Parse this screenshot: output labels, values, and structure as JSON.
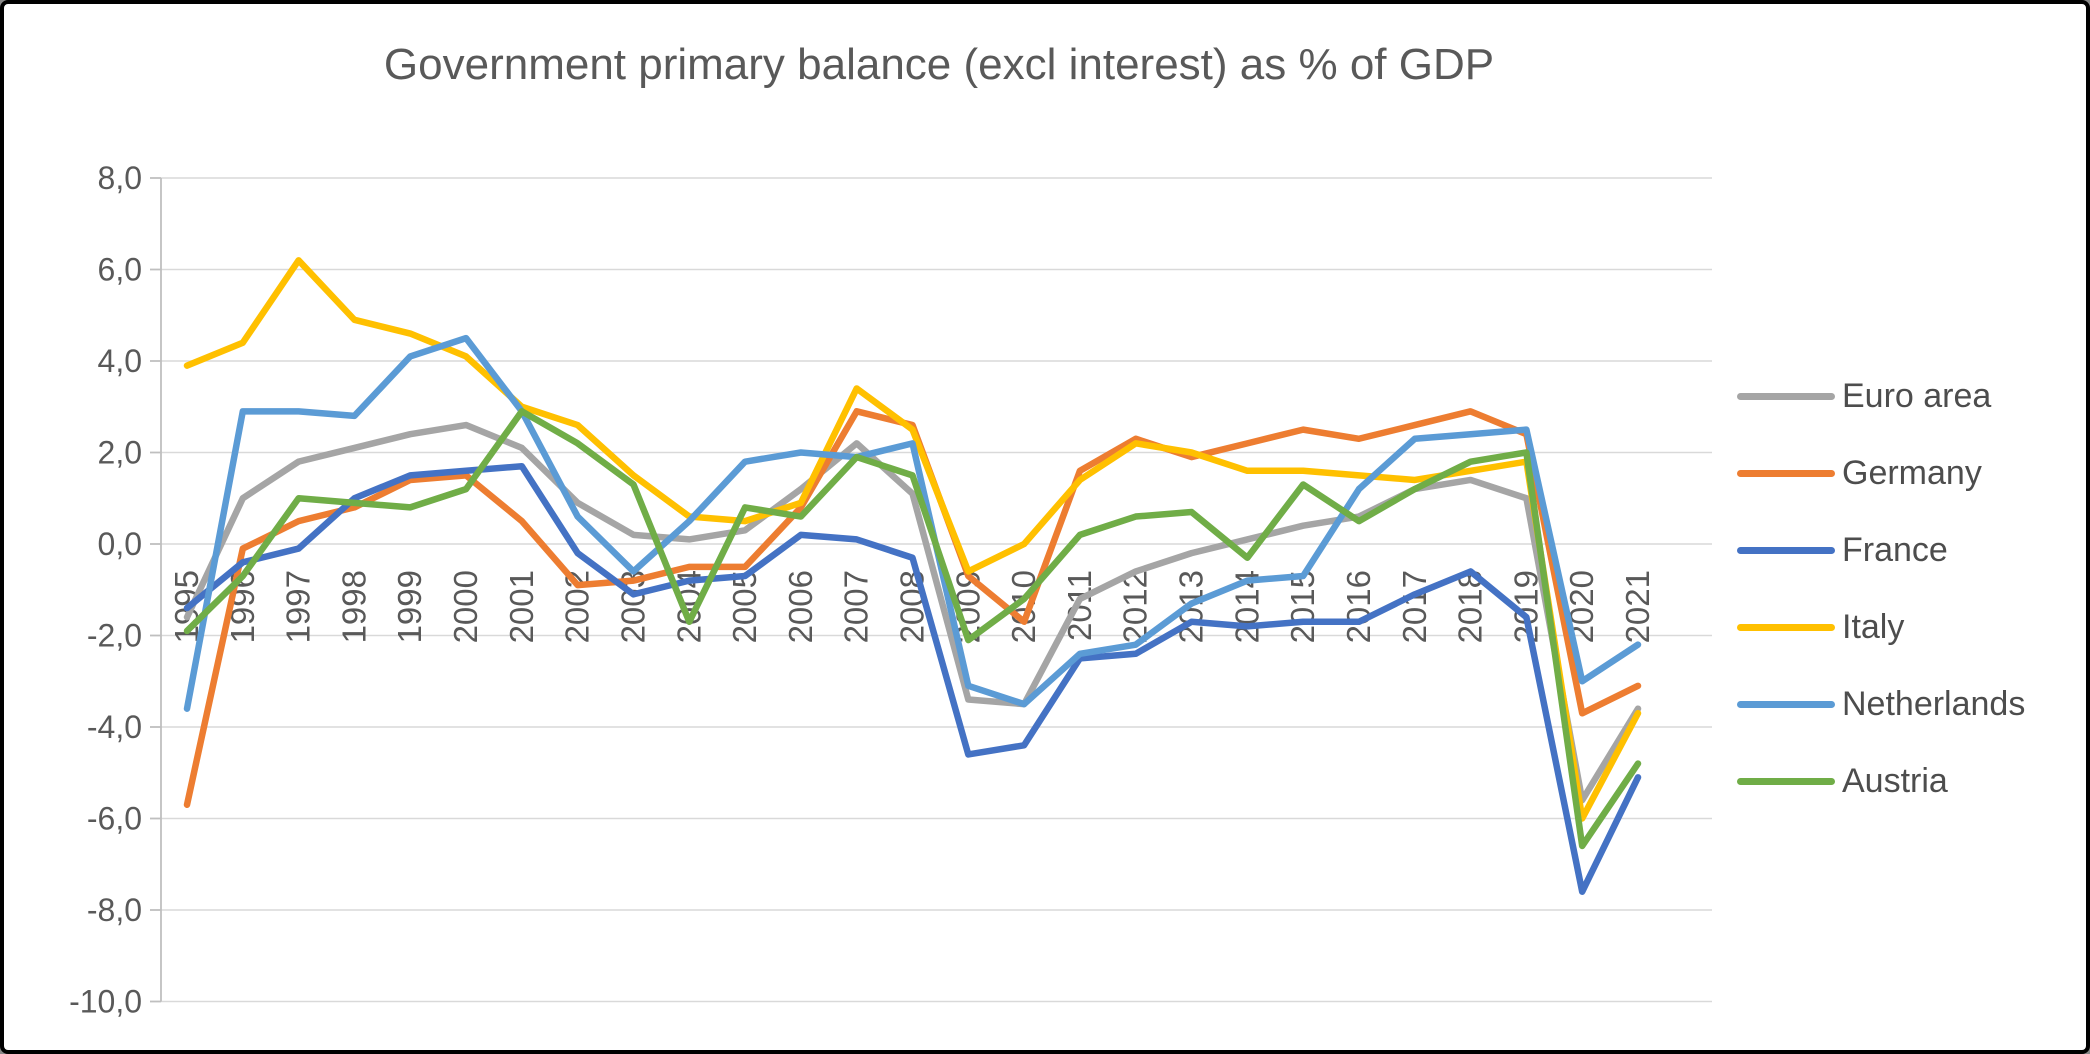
{
  "chart_data": {
    "type": "line",
    "title": "Government primary balance (excl interest) as % of GDP",
    "x": [
      "1995",
      "1996",
      "1997",
      "1998",
      "1999",
      "2000",
      "2001",
      "2002",
      "2003",
      "2004",
      "2005",
      "2006",
      "2007",
      "2008",
      "2009",
      "2010",
      "2011",
      "2012",
      "2013",
      "2014",
      "2015",
      "2016",
      "2017",
      "2018",
      "2019",
      "2020",
      "2021"
    ],
    "series": [
      {
        "name": "Euro area",
        "color": "#a5a5a5",
        "values": [
          -1.6,
          1.0,
          1.8,
          2.1,
          2.4,
          2.6,
          2.1,
          0.9,
          0.2,
          0.1,
          0.3,
          1.2,
          2.2,
          1.1,
          -3.4,
          -3.5,
          -1.2,
          -0.6,
          -0.2,
          0.1,
          0.4,
          0.6,
          1.2,
          1.4,
          1.0,
          -5.6,
          -3.6
        ]
      },
      {
        "name": "Germany",
        "color": "#ed7d31",
        "values": [
          -5.7,
          -0.1,
          0.5,
          0.8,
          1.4,
          1.5,
          0.5,
          -0.9,
          -0.8,
          -0.5,
          -0.5,
          0.8,
          2.9,
          2.6,
          -0.7,
          -1.7,
          1.6,
          2.3,
          1.9,
          2.2,
          2.5,
          2.3,
          2.6,
          2.9,
          2.4,
          -3.7,
          -3.1
        ]
      },
      {
        "name": "France",
        "color": "#4472c4",
        "values": [
          -1.4,
          -0.4,
          -0.1,
          1.0,
          1.5,
          1.6,
          1.7,
          -0.2,
          -1.1,
          -0.8,
          -0.7,
          0.2,
          0.1,
          -0.3,
          -4.6,
          -4.4,
          -2.5,
          -2.4,
          -1.7,
          -1.8,
          -1.7,
          -1.7,
          -1.1,
          -0.6,
          -1.6,
          -7.6,
          -5.1
        ]
      },
      {
        "name": "Italy",
        "color": "#ffc000",
        "values": [
          3.9,
          4.4,
          6.2,
          4.9,
          4.6,
          4.1,
          3.0,
          2.6,
          1.5,
          0.6,
          0.5,
          0.9,
          3.4,
          2.5,
          -0.6,
          0.0,
          1.4,
          2.2,
          2.0,
          1.6,
          1.6,
          1.5,
          1.4,
          1.6,
          1.8,
          -6.0,
          -3.7
        ]
      },
      {
        "name": "Netherlands",
        "color": "#5b9bd5",
        "values": [
          -3.6,
          2.9,
          2.9,
          2.8,
          4.1,
          4.5,
          2.9,
          0.6,
          -0.6,
          0.5,
          1.8,
          2.0,
          1.9,
          2.2,
          -3.1,
          -3.5,
          -2.4,
          -2.2,
          -1.3,
          -0.8,
          -0.7,
          1.2,
          2.3,
          2.4,
          2.5,
          -3.0,
          -2.2
        ]
      },
      {
        "name": "Austria",
        "color": "#70ad47",
        "values": [
          -1.9,
          -0.7,
          1.0,
          0.9,
          0.8,
          1.2,
          2.9,
          2.2,
          1.3,
          -1.7,
          0.8,
          0.6,
          1.9,
          1.5,
          -2.1,
          -1.2,
          0.2,
          0.6,
          0.7,
          -0.3,
          1.3,
          0.5,
          1.2,
          1.8,
          2.0,
          -6.6,
          -4.8
        ]
      }
    ],
    "ylim": [
      -10,
      8
    ],
    "ytick_values": [
      8,
      6,
      4,
      2,
      0,
      -2,
      -4,
      -6,
      -8,
      -10
    ],
    "ytick_labels": [
      "8,0",
      "6,0",
      "4,0",
      "2,0",
      "0,0",
      "-2,0",
      "-4,0",
      "-6,0",
      "-8,0",
      "-10,0"
    ],
    "grid": true,
    "legend_position": "right",
    "axis_color": "#bfbfbf",
    "grid_color": "#d9d9d9",
    "label_color": "#595959"
  }
}
